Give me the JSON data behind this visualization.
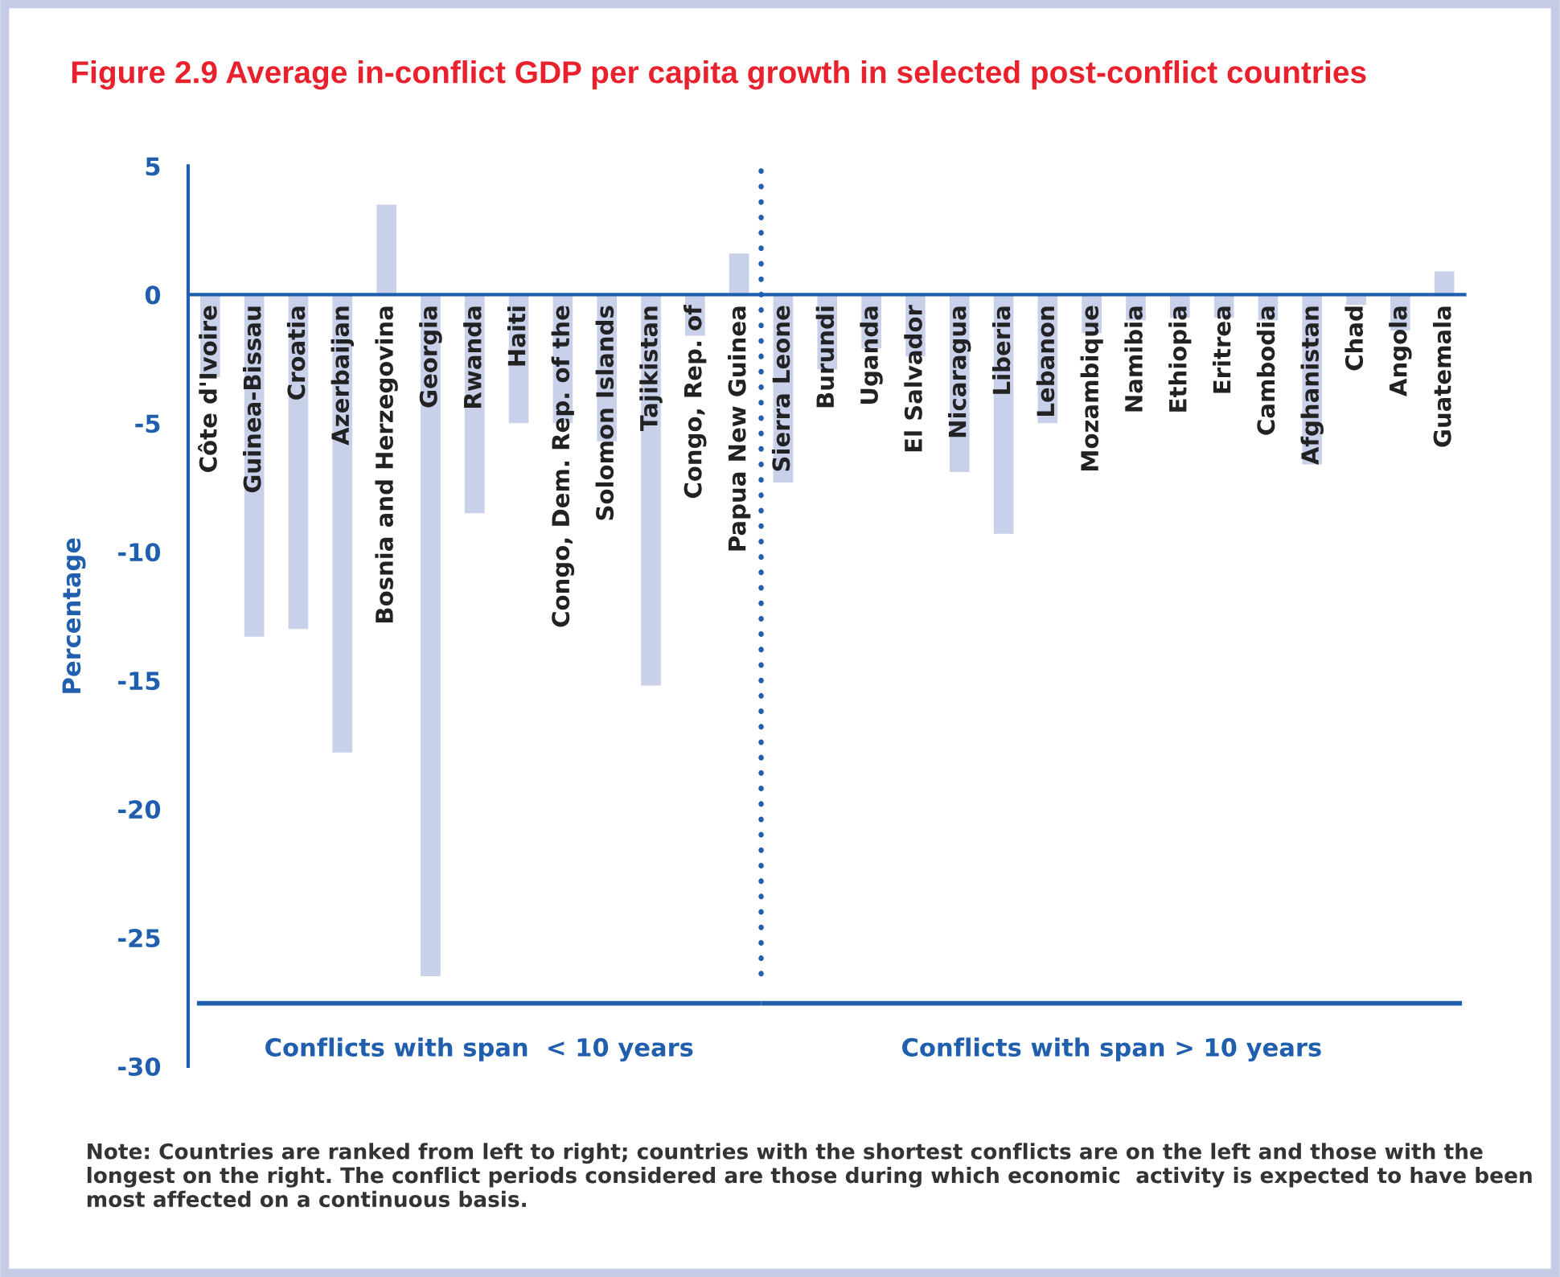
{
  "chart_data": {
    "type": "bar",
    "title": "Figure 2.9 Average in-conflict GDP per capita growth in selected post-conflict countries",
    "ylabel": "Percentage",
    "categories": [
      "Côte d'Ivoire",
      "Guinea-Bissau",
      "Croatia",
      "Azerbaijan",
      "Bosnia and Herzegovina",
      "Georgia",
      "Rwanda",
      "Haiti",
      "Congo, Dem. Rep. of the",
      "Solomon Islands",
      "Tajikistan",
      "Congo, Rep. of",
      "Papua New Guinea",
      "Sierra Leone",
      "Burundi",
      "Uganda",
      "El Salvador",
      "Nicaragua",
      "Liberia",
      "Lebanon",
      "Mozambique",
      "Namibia",
      "Ethiopia",
      "Eritrea",
      "Cambodia",
      "Afghanistan",
      "Chad",
      "Angola",
      "Guatemala"
    ],
    "values": [
      -3.2,
      -13.3,
      -13.0,
      -17.8,
      3.5,
      -26.5,
      -8.5,
      -5.0,
      -5.0,
      -5.7,
      -15.2,
      -1.6,
      1.6,
      -7.3,
      -2.9,
      -2.1,
      -2.4,
      -6.9,
      -9.3,
      -5.0,
      -1.5,
      -1.0,
      -0.9,
      -0.9,
      -1.0,
      -6.6,
      -0.4,
      -1.4,
      0.9
    ],
    "color": "#c9d1ea",
    "ylim": [
      -30,
      5
    ],
    "yticks": [
      5,
      0,
      -5,
      -10,
      -15,
      -20,
      -25,
      -30
    ],
    "grid": false,
    "annotations": [
      "Conflicts with span  < 10 years",
      "Conflicts with span > 10 years",
      "Note: Countries are ranked from left to right; countries with the shortest conflicts are on the left and those with the longest on the right. The conflict periods considered are those during which economic  activity is expected to have been most affected on a continuous basis."
    ]
  }
}
